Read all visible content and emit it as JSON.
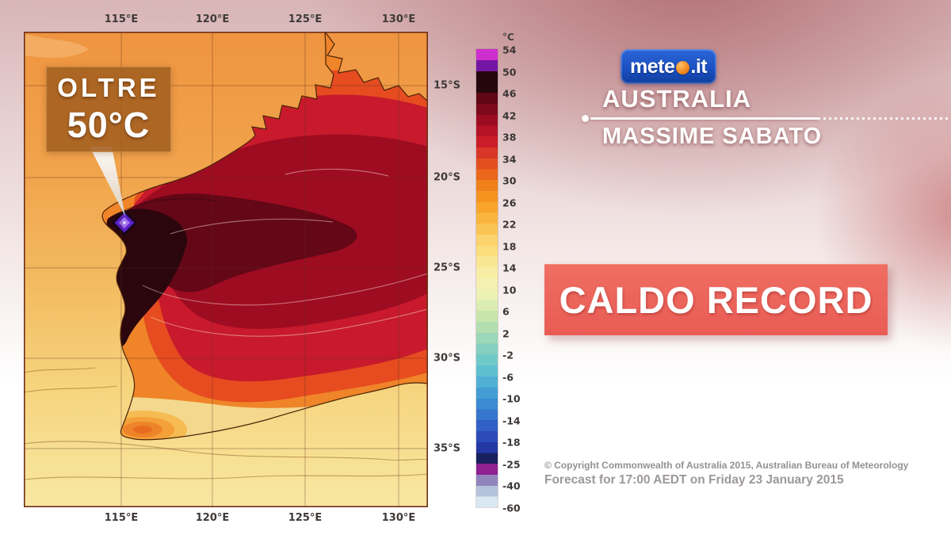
{
  "header": {
    "logo": {
      "text_left": "mete",
      "text_right": ".it",
      "dot_color": "#f08a1e",
      "bg_color": "#1c50c0"
    },
    "title": "AUSTRALIA",
    "subtitle": "MASSIME SABATO"
  },
  "banner": {
    "label": "CALDO RECORD",
    "bg_color": "#ea6157"
  },
  "footer": {
    "copyright": "© Copyright Commonwealth of Australia 2015, Australian Bureau of Meteorology",
    "forecast": "Forecast for 17:00 AEDT on Friday 23 January 2015"
  },
  "map": {
    "callout": {
      "line1": "OLTRE",
      "line2": "50°C"
    },
    "top_labels": [
      "115°E",
      "120°E",
      "125°E",
      "130°E"
    ],
    "bottom_labels": [
      "115°E",
      "120°E",
      "125°E",
      "130°E"
    ],
    "lat_labels": [
      "15°S",
      "20°S",
      "25°S",
      "30°S",
      "35°S"
    ]
  },
  "colorbar": {
    "unit": "°C",
    "labels": [
      "54",
      "50",
      "46",
      "42",
      "38",
      "34",
      "30",
      "26",
      "22",
      "18",
      "14",
      "10",
      "6",
      "2",
      "-2",
      "-6",
      "-10",
      "-14",
      "-18",
      "-25",
      "-40",
      "-60"
    ],
    "segments": [
      "linear-gradient(180deg,#cf2ecf 0%,#cf2ecf 50%,#7316a4 50%,#7316a4 100%)",
      "#26060d",
      "linear-gradient(180deg,#5f0715 0%,#5f0715 50%,#7d0a1c 50%,#7d0a1c 100%)",
      "linear-gradient(180deg,#9c0c21 0%,#9c0c21 50%,#b51226 50%,#b51226 100%)",
      "linear-gradient(180deg,#cb1c2a 0%,#cb1c2a 50%,#d93627 50%,#d93627 100%)",
      "linear-gradient(180deg,#e34f20 0%,#e34f20 50%,#ea671c 50%,#ea671c 100%)",
      "linear-gradient(180deg,#f0801a 0%,#f0801a 50%,#f4941f 50%,#f4941f 100%)",
      "linear-gradient(180deg,#f7a52b 0%,#f7a52b 50%,#f9b53e 50%,#f9b53e 100%)",
      "linear-gradient(180deg,#fac455 0%,#fac455 50%,#fbd26b 50%,#fbd26b 100%)",
      "linear-gradient(180deg,#fadd7d 0%,#fadd7d 50%,#f9e692 50%,#f9e692 100%)",
      "linear-gradient(180deg,#f8eda5 0%,#f8eda5 50%,#f4f0b2 50%,#f4f0b2 100%)",
      "linear-gradient(180deg,#ecf1b4 0%,#ecf1b4 50%,#dcedb2 50%,#dcedb2 100%)",
      "linear-gradient(180deg,#c8e6ac 0%,#c8e6ac 50%,#b2deb0 50%,#b2deb0 100%)",
      "linear-gradient(180deg,#9bd7b8 0%,#9bd7b8 50%,#85cfc0 50%,#85cfc0 100%)",
      "linear-gradient(180deg,#6fc9c8 0%,#6fc9c8 50%,#5dc0d0 50%,#5dc0d0 100%)",
      "linear-gradient(180deg,#4fb0d4 0%,#4fb0d4 50%,#449dd4 50%,#449dd4 100%)",
      "linear-gradient(180deg,#3b8ad2 0%,#3b8ad2 50%,#3676cc 50%,#3676cc 100%)",
      "linear-gradient(180deg,#3161c6 0%,#3161c6 50%,#2b4cb8 50%,#2b4cb8 100%)",
      "linear-gradient(180deg,#2438a4 0%,#2438a4 50%,#19205f 50%,#19205f 100%)",
      "linear-gradient(180deg,#8e2090 0%,#8e2090 50%,#9184bd 50%,#9184bd 100%)",
      "linear-gradient(180deg,#b4c3da 0%,#b4c3da 50%,#d9e8f1 50%,#d9e8f1 100%)"
    ]
  },
  "chart_data": {
    "type": "heatmap",
    "title": "Maximum temperature forecast map, Western Australia",
    "unit": "°C",
    "lon_ticks": [
      "115°E",
      "120°E",
      "125°E",
      "130°E"
    ],
    "lat_ticks": [
      "15°S",
      "20°S",
      "25°S",
      "30°S",
      "35°S"
    ],
    "scale_labels": [
      54,
      50,
      46,
      42,
      38,
      34,
      30,
      26,
      22,
      18,
      14,
      10,
      6,
      2,
      -2,
      -6,
      -10,
      -14,
      -18,
      -25,
      -40,
      -60
    ],
    "annotation": "OLTRE 50°C (hotspot near 115°E, 22°S)"
  }
}
